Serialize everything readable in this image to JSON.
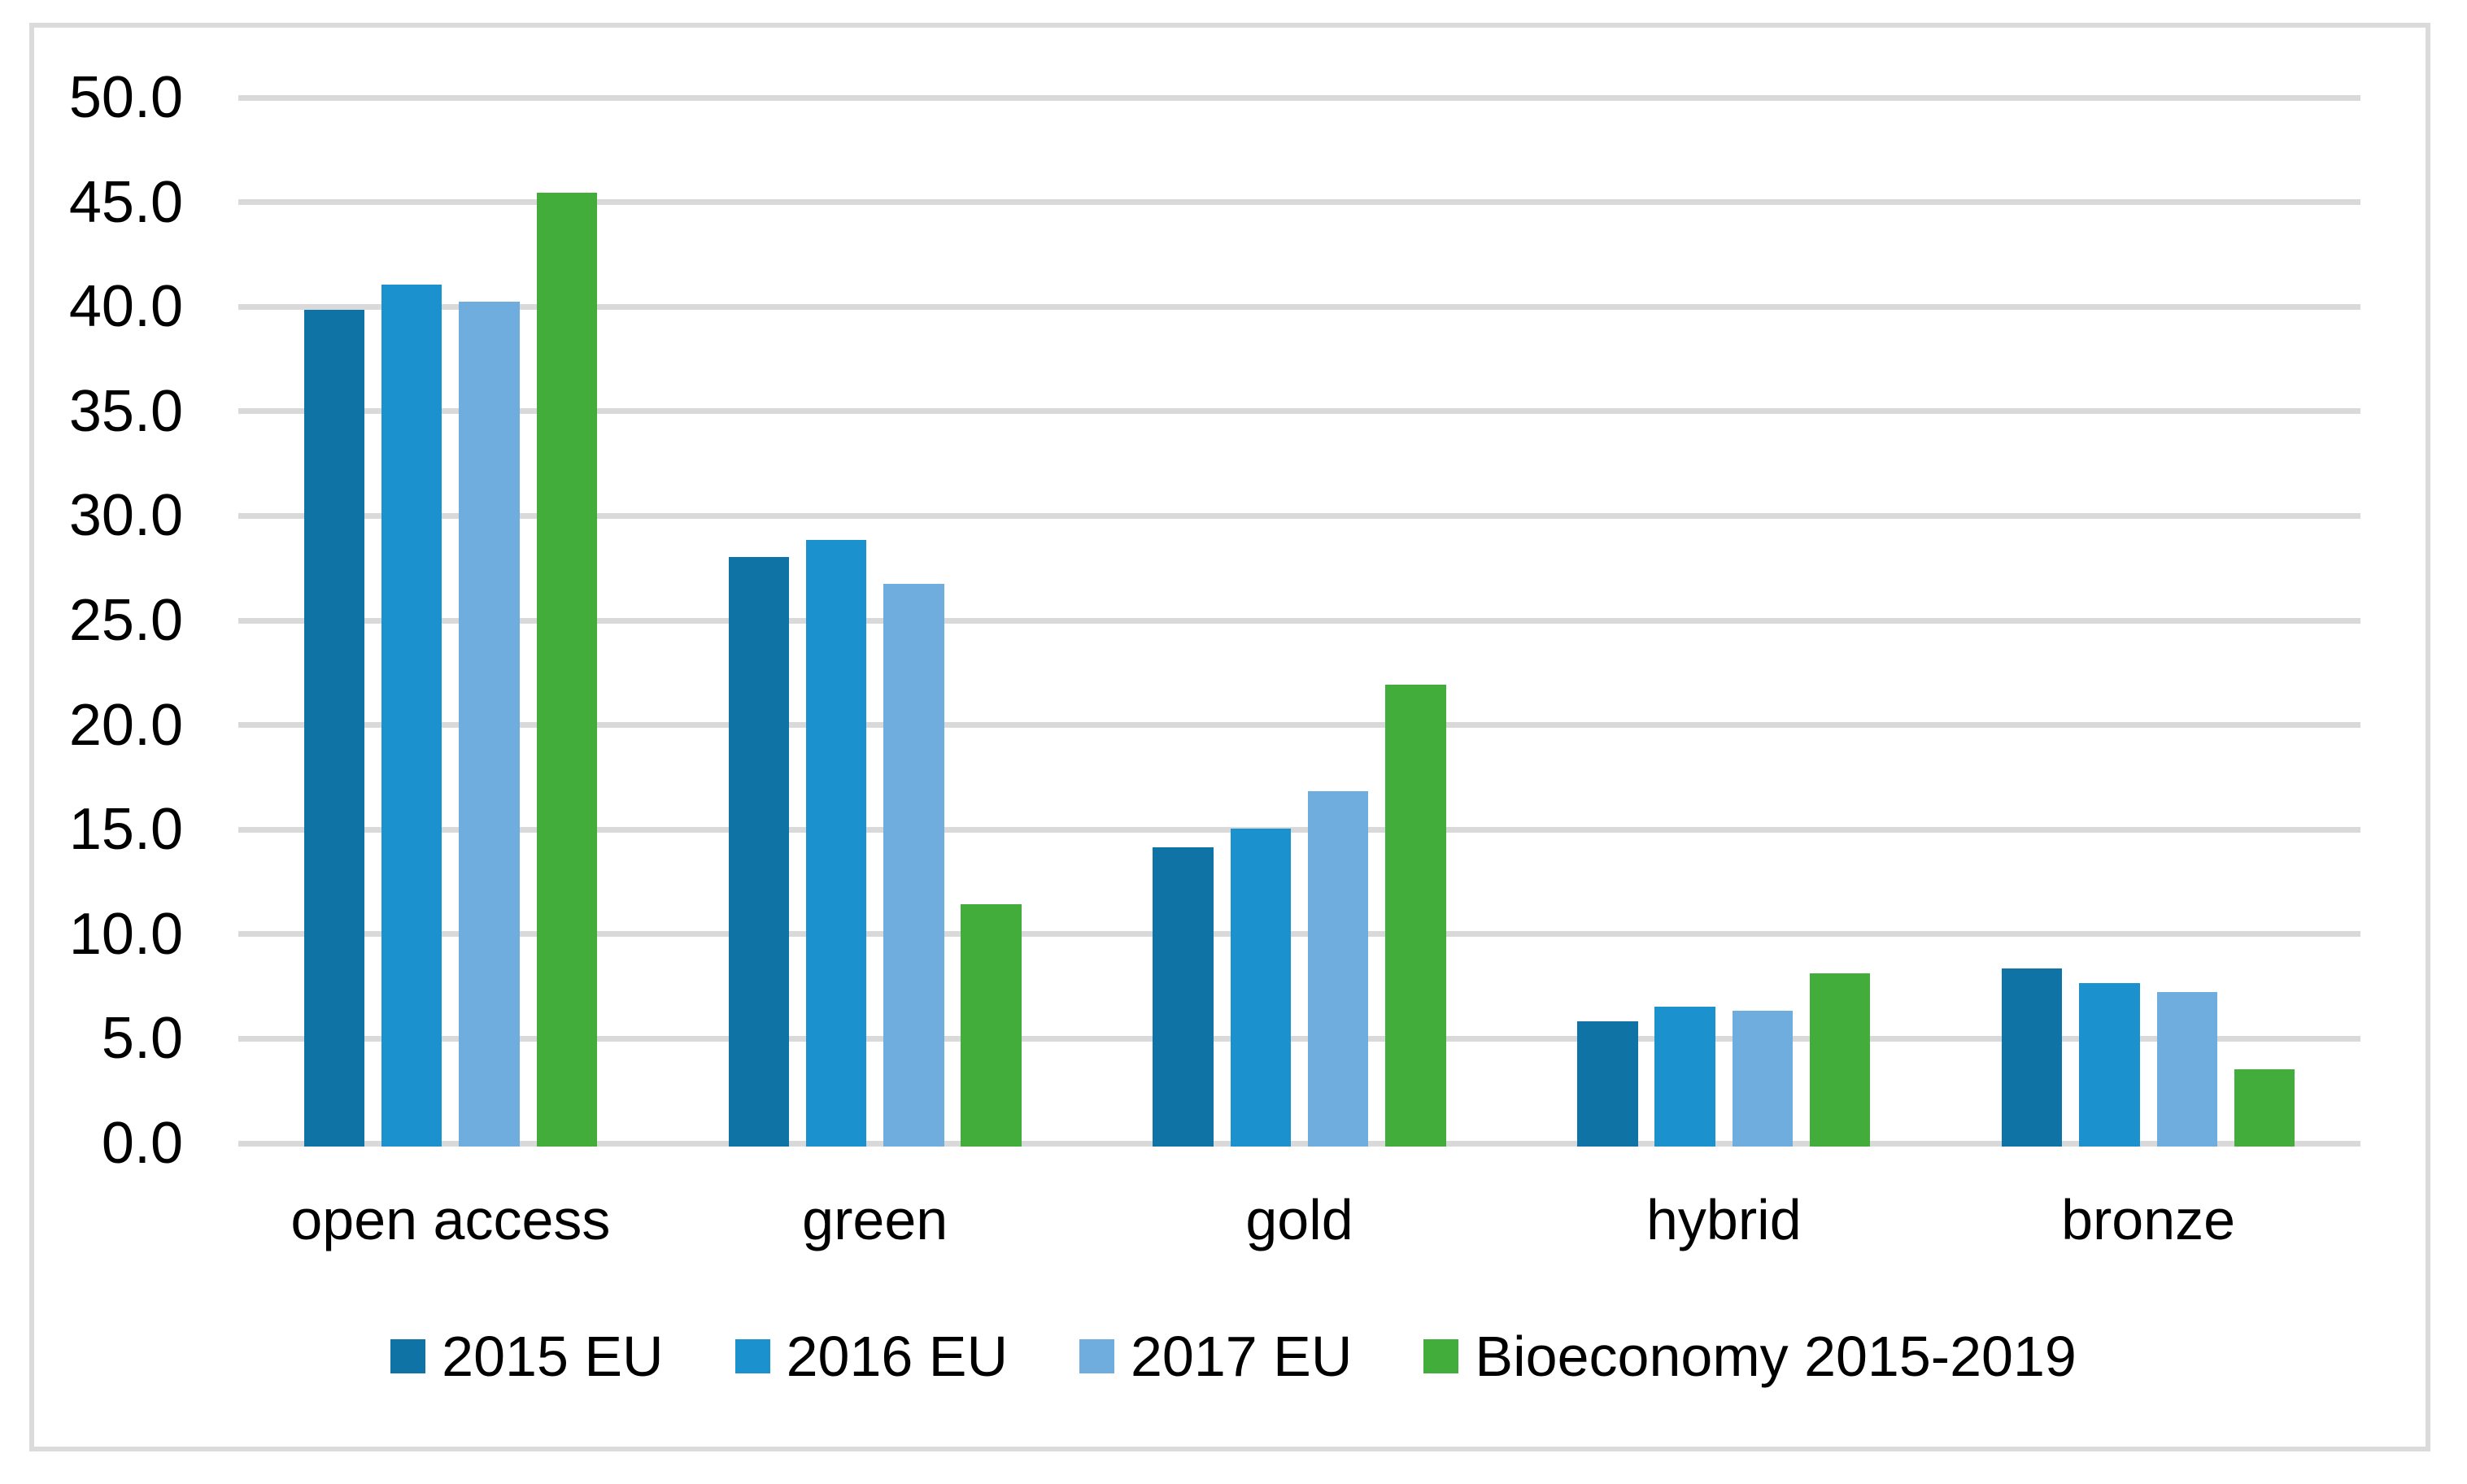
{
  "chart_data": {
    "type": "bar",
    "title": "",
    "xlabel": "",
    "ylabel": "",
    "categories": [
      "open access",
      "green",
      "gold",
      "hybrid",
      "bronze"
    ],
    "series": [
      {
        "name": "2015 EU",
        "color": "#1073A6",
        "values": [
          40.0,
          28.2,
          14.3,
          6.0,
          8.5
        ]
      },
      {
        "name": "2016 EU",
        "color": "#1B91CE",
        "values": [
          41.2,
          29.0,
          15.2,
          6.7,
          7.8
        ]
      },
      {
        "name": "2017 EU",
        "color": "#6FADDE",
        "values": [
          40.4,
          26.9,
          17.0,
          6.5,
          7.4
        ]
      },
      {
        "name": "Bioeconomy 2015-2019",
        "color": "#43AD3C",
        "values": [
          45.6,
          11.6,
          22.1,
          8.3,
          3.7
        ]
      }
    ],
    "ylim": [
      0,
      50
    ],
    "ytick_step": 5,
    "ytick_labels": [
      "0.0",
      "5.0",
      "10.0",
      "15.0",
      "20.0",
      "25.0",
      "30.0",
      "35.0",
      "40.0",
      "45.0",
      "50.0"
    ],
    "grid": true,
    "legend_position": "bottom"
  },
  "style": {
    "background": "#FFFFFF",
    "frame_color": "#DBDBDB",
    "grid_color": "#D9D9D9",
    "text_color": "#000000"
  }
}
